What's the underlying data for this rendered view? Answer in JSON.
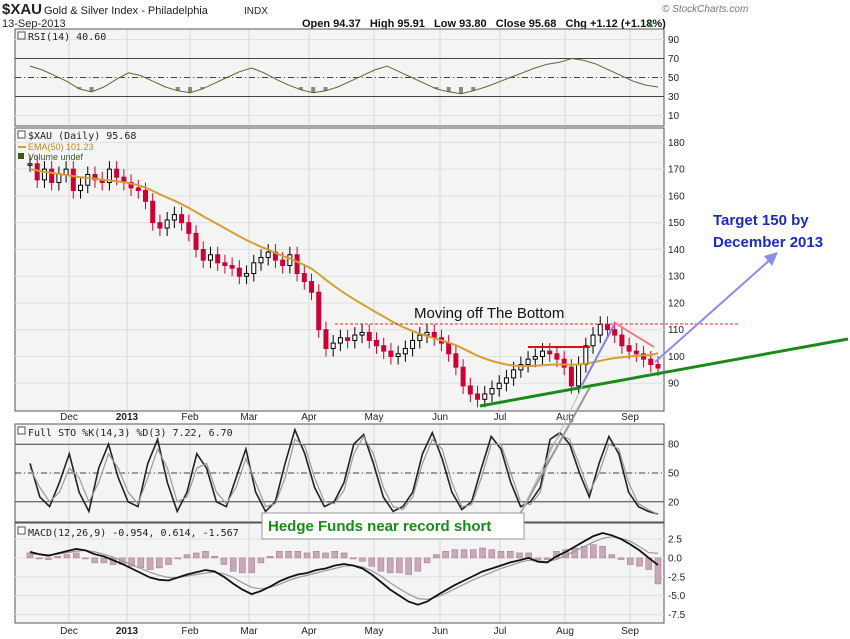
{
  "header": {
    "symbol": "$XAU",
    "name": "Gold & Silver Index - Philadelphia",
    "exchange": "INDX",
    "date": "13-Sep-2013",
    "quote": "Open 94.37   High 95.91   Low 93.80   Close 95.68   Chg +1.12 (+1.18%)",
    "up_arrow": "▲",
    "brand": "© StockCharts.com"
  },
  "annotations": {
    "target_line1": "Target 150 by",
    "target_line2": "December 2013",
    "bottom_label": "Moving off The Bottom",
    "hedge_label": "Hedge Funds near record short"
  },
  "colors": {
    "price_up": "#000000",
    "price_down": "#cc0033",
    "ema": "#d4a030",
    "rsi": "#556b2f",
    "trend_green": "#1a8a1a",
    "target_blue": "#7a7ae6",
    "target_text": "#1a2bbf",
    "red_line": "#ee2222"
  },
  "chart_data": [
    {
      "type": "line",
      "panel": "rsi",
      "label": "RSI(14) 40.60",
      "series": [
        {
          "name": "RSI(14)",
          "values": [
            62,
            58,
            52,
            46,
            38,
            35,
            40,
            48,
            55,
            52,
            46,
            40,
            36,
            34,
            38,
            44,
            50,
            56,
            60,
            55,
            48,
            42,
            37,
            34,
            36,
            40,
            46,
            52,
            58,
            62,
            56,
            50,
            44,
            38,
            35,
            33,
            36,
            40,
            45,
            50,
            55,
            60,
            64,
            66,
            70,
            68,
            64,
            58,
            52,
            46,
            42,
            40
          ]
        }
      ],
      "ylim": [
        0,
        100
      ],
      "ticks": [
        90,
        70,
        50,
        30,
        10
      ]
    },
    {
      "type": "candlestick",
      "panel": "price",
      "label": "$XAU (Daily) 95.68",
      "ema_label": "EMA(50) 101.23",
      "volume_label": "Volume undef",
      "months": [
        "Dec",
        "2013",
        "Feb",
        "Mar",
        "Apr",
        "May",
        "Jun",
        "Jul",
        "Aug",
        "Sep"
      ],
      "close": [
        172,
        166,
        170,
        165,
        168,
        170,
        162,
        164,
        168,
        166,
        165,
        170,
        167,
        165,
        163,
        162,
        158,
        150,
        148,
        151,
        153,
        150,
        146,
        140,
        136,
        138,
        135,
        134,
        133,
        130,
        131,
        135,
        137,
        139,
        136,
        134,
        138,
        131,
        128,
        124,
        110,
        103,
        105,
        107,
        106,
        108,
        109,
        106,
        104,
        102,
        100,
        101,
        103,
        106,
        108,
        109,
        107,
        105,
        101,
        96,
        89,
        86,
        84,
        86,
        88,
        90,
        92,
        95,
        97,
        99,
        100,
        102,
        101,
        99,
        96,
        89,
        97,
        104,
        108,
        112,
        110,
        108,
        104,
        102,
        101,
        99,
        97,
        95.68
      ],
      "ema": [
        170,
        169.5,
        169,
        168.6,
        168.2,
        167.8,
        167.4,
        167,
        166.7,
        166.4,
        166,
        165.8,
        165.5,
        165.1,
        164.6,
        164,
        163.1,
        161.9,
        160.6,
        159.4,
        158.2,
        156.9,
        155.5,
        154,
        152.4,
        150.9,
        149.4,
        147.9,
        146.4,
        144.9,
        143.5,
        142.2,
        141,
        139.9,
        138.7,
        137.6,
        136.6,
        135.4,
        134.2,
        132.8,
        130.8,
        128.6,
        126.6,
        124.7,
        122.9,
        121.2,
        119.6,
        118,
        116.4,
        114.9,
        113.3,
        111.9,
        110.6,
        109.5,
        108.5,
        107.6,
        106.8,
        106,
        105.2,
        104.2,
        102.9,
        101.6,
        100.3,
        99.2,
        98.3,
        97.6,
        97,
        96.6,
        96.4,
        96.4,
        96.5,
        96.7,
        96.9,
        97,
        97,
        96.9,
        97,
        97.3,
        97.8,
        98.4,
        99,
        99.4,
        99.7,
        100,
        100.2,
        100.4,
        100.5,
        101.23
      ],
      "ylim": [
        80,
        185
      ],
      "ticks": [
        180,
        170,
        160,
        150,
        140,
        130,
        120,
        110,
        100,
        90
      ]
    },
    {
      "type": "line",
      "panel": "sto",
      "label": "Full STO %K(14,3) %D(3) 7.22, 6.70",
      "series": [
        {
          "name": "%K",
          "values": [
            60,
            25,
            15,
            40,
            70,
            30,
            10,
            55,
            80,
            45,
            20,
            15,
            60,
            85,
            40,
            10,
            30,
            70,
            55,
            20,
            15,
            45,
            75,
            30,
            10,
            20,
            60,
            95,
            70,
            35,
            15,
            20,
            40,
            80,
            90,
            60,
            25,
            10,
            15,
            30,
            70,
            92,
            65,
            30,
            12,
            20,
            55,
            88,
            75,
            40,
            15,
            20,
            35,
            85,
            92,
            80,
            50,
            25,
            60,
            88,
            70,
            30,
            15,
            10,
            7.22
          ]
        },
        {
          "name": "%D",
          "values": [
            55,
            35,
            20,
            30,
            55,
            45,
            20,
            40,
            70,
            55,
            30,
            18,
            45,
            75,
            55,
            20,
            25,
            55,
            60,
            30,
            18,
            35,
            65,
            40,
            15,
            18,
            45,
            85,
            78,
            45,
            20,
            18,
            32,
            70,
            88,
            70,
            35,
            15,
            12,
            25,
            60,
            85,
            75,
            40,
            15,
            17,
            45,
            80,
            80,
            50,
            20,
            17,
            30,
            75,
            90,
            85,
            58,
            30,
            50,
            80,
            75,
            40,
            18,
            12,
            6.7
          ]
        }
      ],
      "ylim": [
        0,
        100
      ],
      "ticks": [
        80,
        50,
        20
      ]
    },
    {
      "type": "line",
      "panel": "macd",
      "label": "MACD(12,26,9) -0.954, 0.614, -1.567",
      "series": [
        {
          "name": "MACD",
          "values": [
            0.8,
            0.5,
            0.3,
            0.6,
            0.9,
            1.2,
            1.0,
            0.5,
            0.2,
            -0.3,
            -0.8,
            -1.4,
            -2.0,
            -2.6,
            -2.9,
            -3.0,
            -2.6,
            -2.2,
            -1.9,
            -1.6,
            -1.8,
            -2.5,
            -3.4,
            -4.2,
            -4.8,
            -4.4,
            -3.8,
            -3.1,
            -2.6,
            -2.2,
            -2.0,
            -1.6,
            -1.4,
            -1.0,
            -0.8,
            -1.0,
            -1.4,
            -2.2,
            -3.2,
            -4.2,
            -5.0,
            -5.8,
            -6.2,
            -5.8,
            -5.0,
            -4.3,
            -3.6,
            -3.0,
            -2.4,
            -1.8,
            -1.4,
            -1.0,
            -0.6,
            -0.3,
            0.0,
            -0.5,
            -0.6,
            0.2,
            0.8,
            1.5,
            2.2,
            2.9,
            3.3,
            3.0,
            2.5,
            1.8,
            1.0,
            0.0,
            -0.954
          ]
        },
        {
          "name": "Signal",
          "values": [
            0.5,
            0.5,
            0.4,
            0.5,
            0.7,
            0.9,
            1.0,
            0.8,
            0.5,
            0.1,
            -0.4,
            -0.9,
            -1.4,
            -1.9,
            -2.3,
            -2.6,
            -2.6,
            -2.4,
            -2.2,
            -2.0,
            -1.9,
            -2.1,
            -2.6,
            -3.3,
            -3.9,
            -4.1,
            -3.9,
            -3.5,
            -3.0,
            -2.6,
            -2.3,
            -2.0,
            -1.7,
            -1.4,
            -1.1,
            -1.0,
            -1.2,
            -1.7,
            -2.4,
            -3.3,
            -4.1,
            -4.8,
            -5.4,
            -5.5,
            -5.2,
            -4.7,
            -4.1,
            -3.5,
            -2.9,
            -2.4,
            -1.9,
            -1.4,
            -1.0,
            -0.6,
            -0.3,
            -0.4,
            -0.5,
            -0.2,
            0.3,
            0.9,
            1.5,
            2.1,
            2.6,
            2.8,
            2.6,
            2.2,
            1.5,
            0.7,
            0.614
          ]
        }
      ],
      "ylim": [
        -8.5,
        4.5
      ],
      "ticks": [
        2.5,
        0.0,
        -2.5,
        -5.0,
        -7.5
      ]
    }
  ]
}
